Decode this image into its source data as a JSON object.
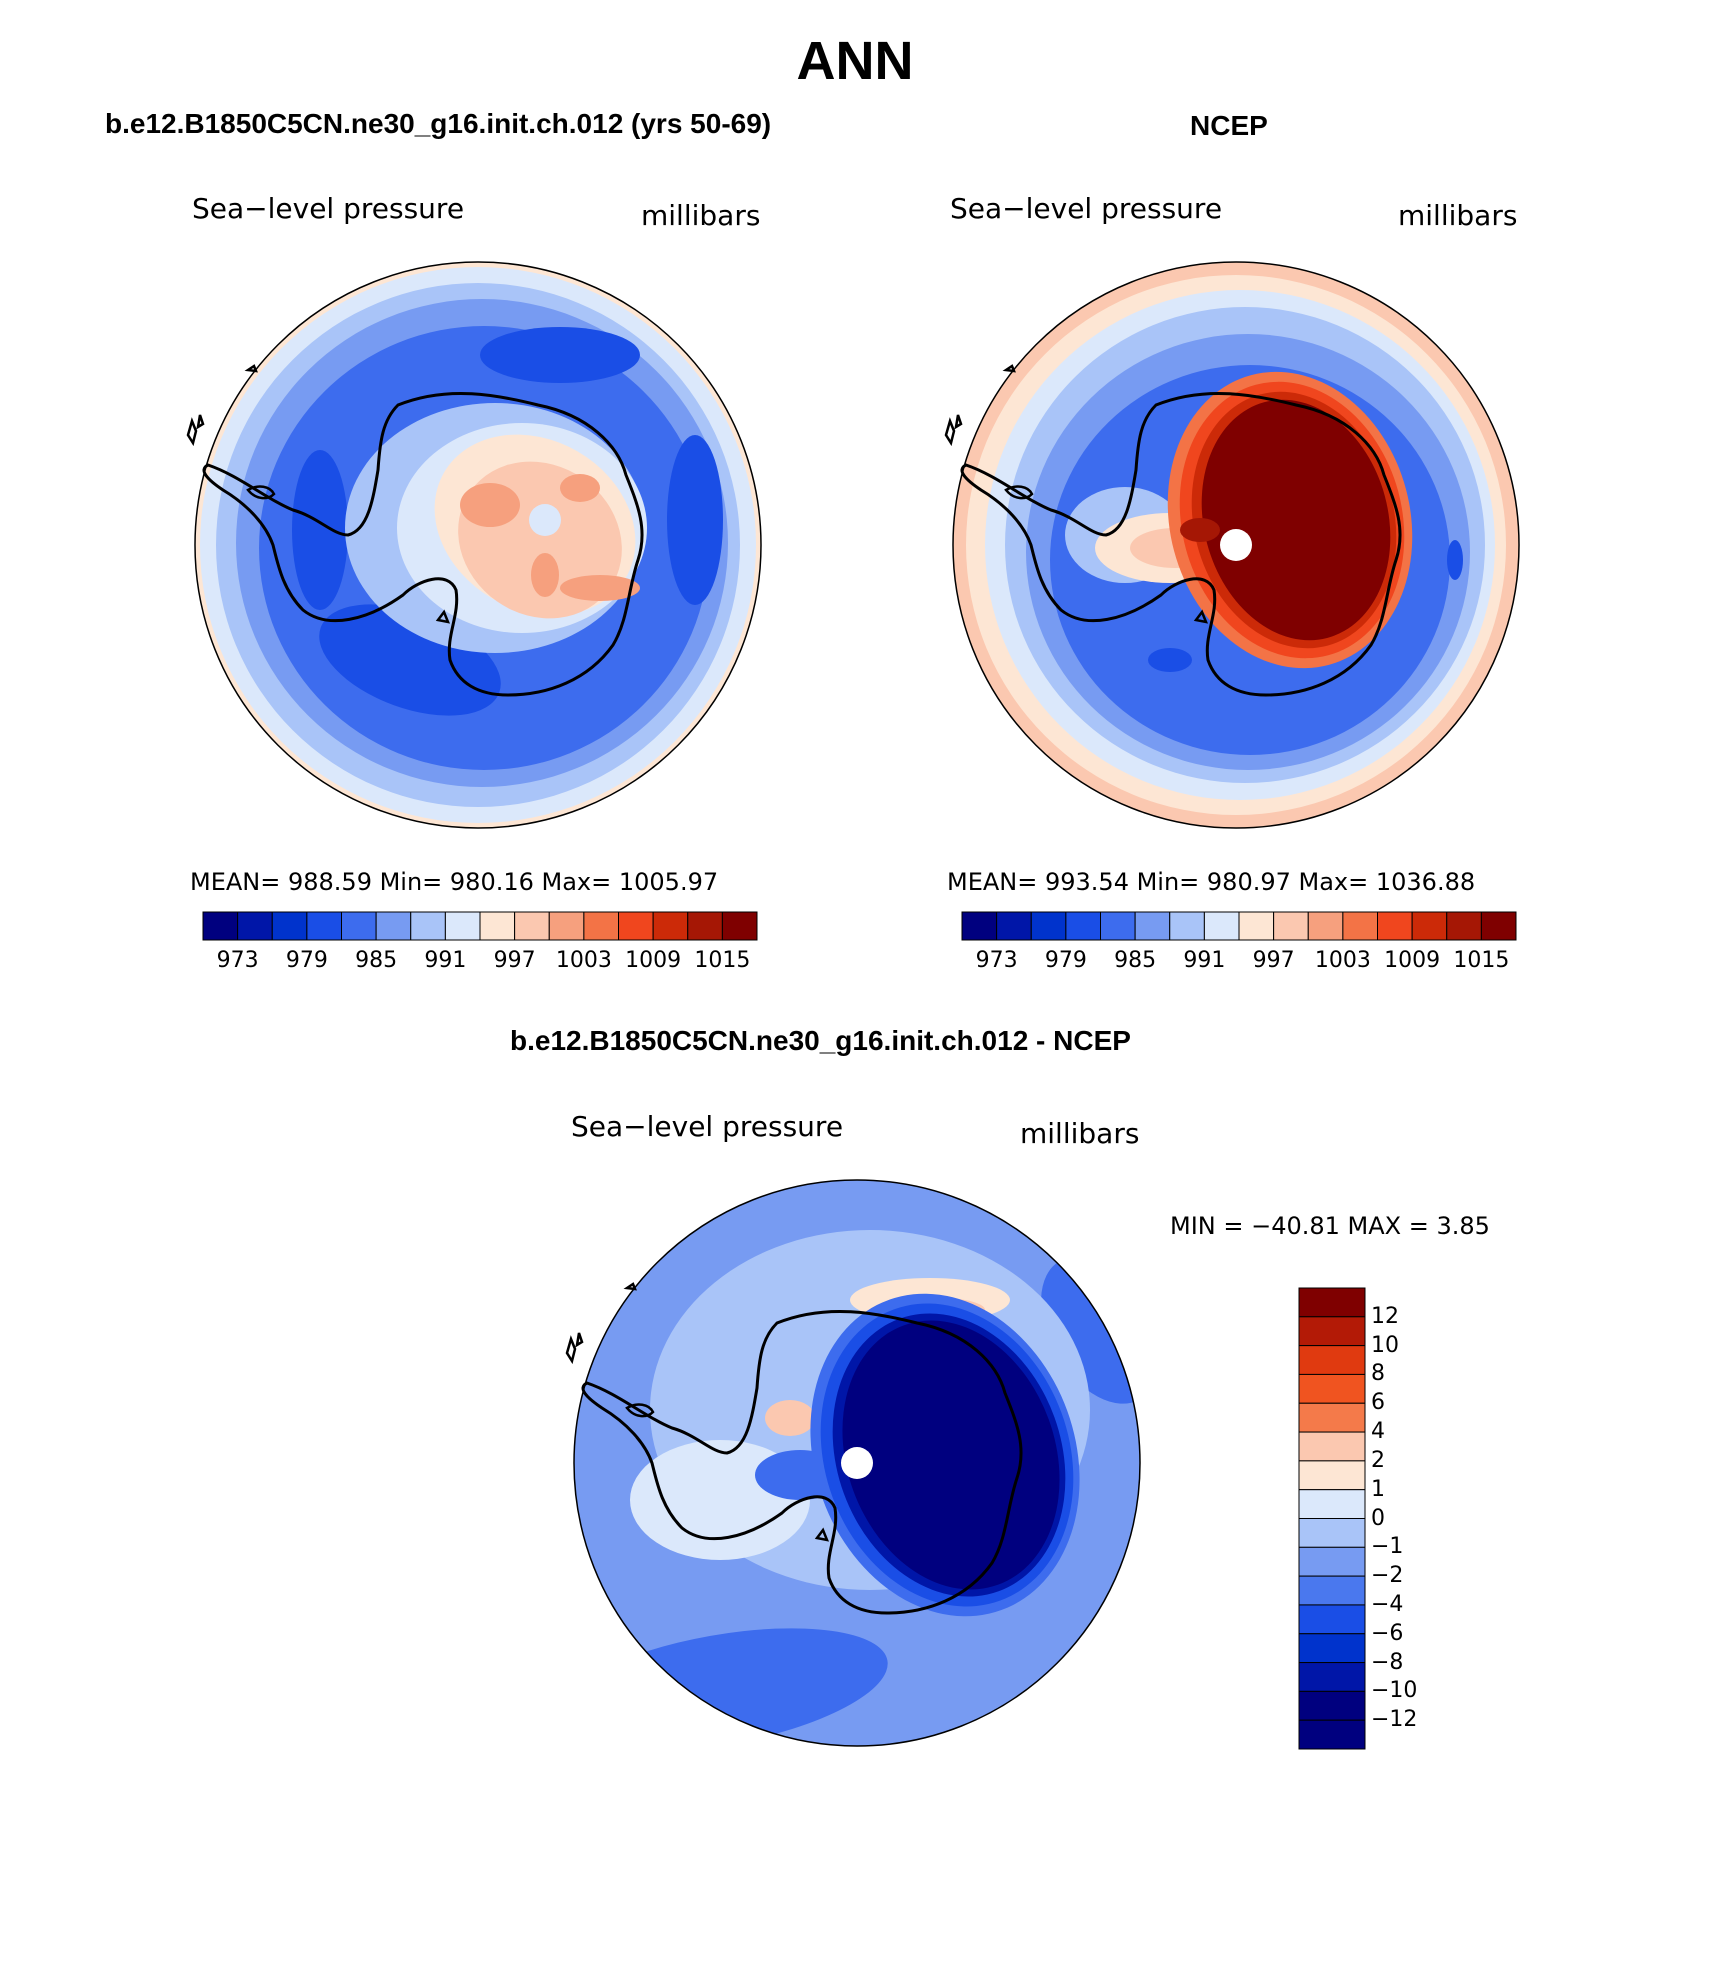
{
  "figure": {
    "title": "ANN"
  },
  "panels": [
    {
      "title": "b.e12.B1850C5CN.ne30_g16.init.ch.012 (yrs 50-69)",
      "variable": "Sea−level pressure",
      "units": "millibars",
      "stats": "MEAN=  988.59   Min=  980.16   Max=  1005.97",
      "colorbar_ticks": [
        "973",
        "979",
        "985",
        "991",
        "997",
        "1003",
        "1009",
        "1015"
      ]
    },
    {
      "title": "NCEP",
      "variable": "Sea−level pressure",
      "units": "millibars",
      "stats": "MEAN=  993.54   Min=  980.97   Max=  1036.88",
      "colorbar_ticks": [
        "973",
        "979",
        "985",
        "991",
        "997",
        "1003",
        "1009",
        "1015"
      ]
    },
    {
      "title": "b.e12.B1850C5CN.ne30_g16.init.ch.012 - NCEP",
      "variable": "Sea−level pressure",
      "units": "millibars",
      "stats": "MIN  =  −40.81  MAX  =     3.85",
      "colorbar_ticks": [
        "12",
        "10",
        "8",
        "6",
        "4",
        "2",
        "1",
        "0",
        "−1",
        "−2",
        "−4",
        "−6",
        "−8",
        "−10",
        "−12"
      ]
    }
  ],
  "colors": {
    "abs_scale": [
      "#00007f",
      "#0016a8",
      "#0033cc",
      "#1a4ee6",
      "#3d6cee",
      "#779bf2",
      "#a9c4f8",
      "#dbe8fb",
      "#fde6d4",
      "#fbc8b0",
      "#f6a07e",
      "#f37346",
      "#f0461e",
      "#cc2a08",
      "#a51705",
      "#7f0000"
    ],
    "diff_scale": [
      "#7f0000",
      "#b31a06",
      "#e03a10",
      "#f05420",
      "#f47a4a",
      "#fbc8b0",
      "#fde6d4",
      "#dbe8fb",
      "#a9c4f8",
      "#779bf2",
      "#4a78ee",
      "#1a4ee6",
      "#0033cc",
      "#0016a8",
      "#00007f"
    ]
  },
  "chart_data": [
    {
      "type": "heatmap",
      "projection": "south polar stereographic",
      "title": "b.e12.B1850C5CN.ne30_g16.init.ch.012 (yrs 50-69)",
      "variable": "Sea−level pressure",
      "units": "millibars",
      "mean": 988.59,
      "min": 980.16,
      "max": 1005.97,
      "contour_levels": [
        973,
        976,
        979,
        982,
        985,
        988,
        991,
        994,
        997,
        1000,
        1003,
        1006,
        1009,
        1012,
        1015
      ],
      "colorbar_labels": [
        973,
        979,
        985,
        991,
        997,
        1003,
        1009,
        1015
      ]
    },
    {
      "type": "heatmap",
      "projection": "south polar stereographic",
      "title": "NCEP",
      "variable": "Sea−level pressure",
      "units": "millibars",
      "mean": 993.54,
      "min": 980.97,
      "max": 1036.88,
      "contour_levels": [
        973,
        976,
        979,
        982,
        985,
        988,
        991,
        994,
        997,
        1000,
        1003,
        1006,
        1009,
        1012,
        1015
      ],
      "colorbar_labels": [
        973,
        979,
        985,
        991,
        997,
        1003,
        1009,
        1015
      ]
    },
    {
      "type": "heatmap",
      "projection": "south polar stereographic",
      "title": "b.e12.B1850C5CN.ne30_g16.init.ch.012 - NCEP",
      "variable": "Sea−level pressure",
      "units": "millibars",
      "min": -40.81,
      "max": 3.85,
      "contour_levels": [
        -12,
        -10,
        -8,
        -6,
        -4,
        -2,
        -1,
        0,
        1,
        2,
        4,
        6,
        8,
        10,
        12
      ]
    }
  ]
}
